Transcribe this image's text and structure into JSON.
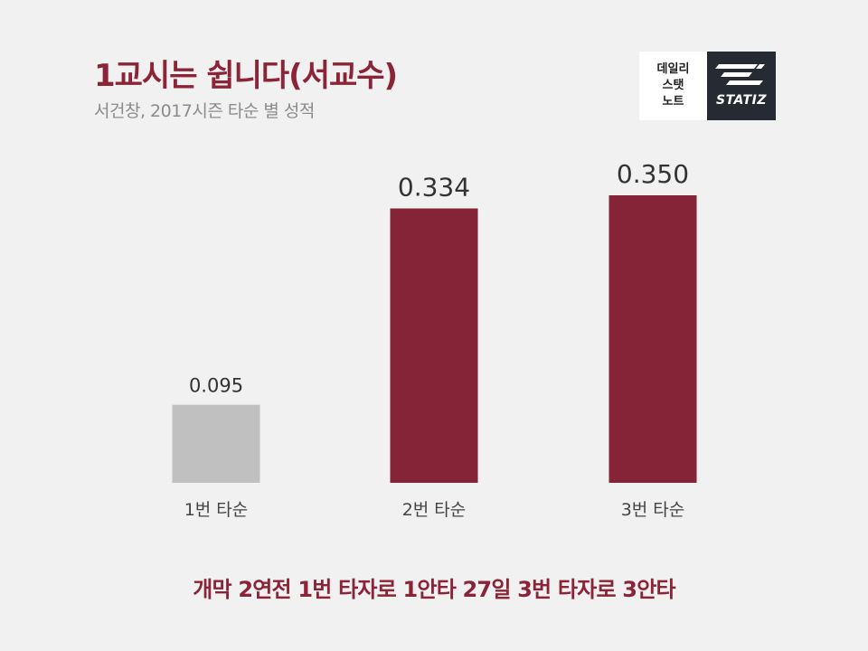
{
  "header": {
    "title": "1교시는 쉽니다(서교수)",
    "subtitle": "서건창, 2017시즌 타순 별 성적"
  },
  "logo": {
    "lines": [
      "데일리",
      "스탯",
      "노트"
    ],
    "brand": "STATIZ"
  },
  "chart_data": {
    "type": "bar",
    "categories": [
      "1번 타순",
      "2번 타순",
      "3번 타순"
    ],
    "values": [
      0.095,
      0.334,
      0.35
    ],
    "data_labels": [
      "0.095",
      "0.334",
      "0.350"
    ],
    "colors": [
      "#c0c0c0",
      "#862437",
      "#862437"
    ],
    "ylim": [
      0,
      0.35
    ],
    "grid": false,
    "legend": "none"
  },
  "footer": {
    "caption": "개막 2연전 1번 타자로 1안타 27일 3번 타자로 3안타"
  }
}
